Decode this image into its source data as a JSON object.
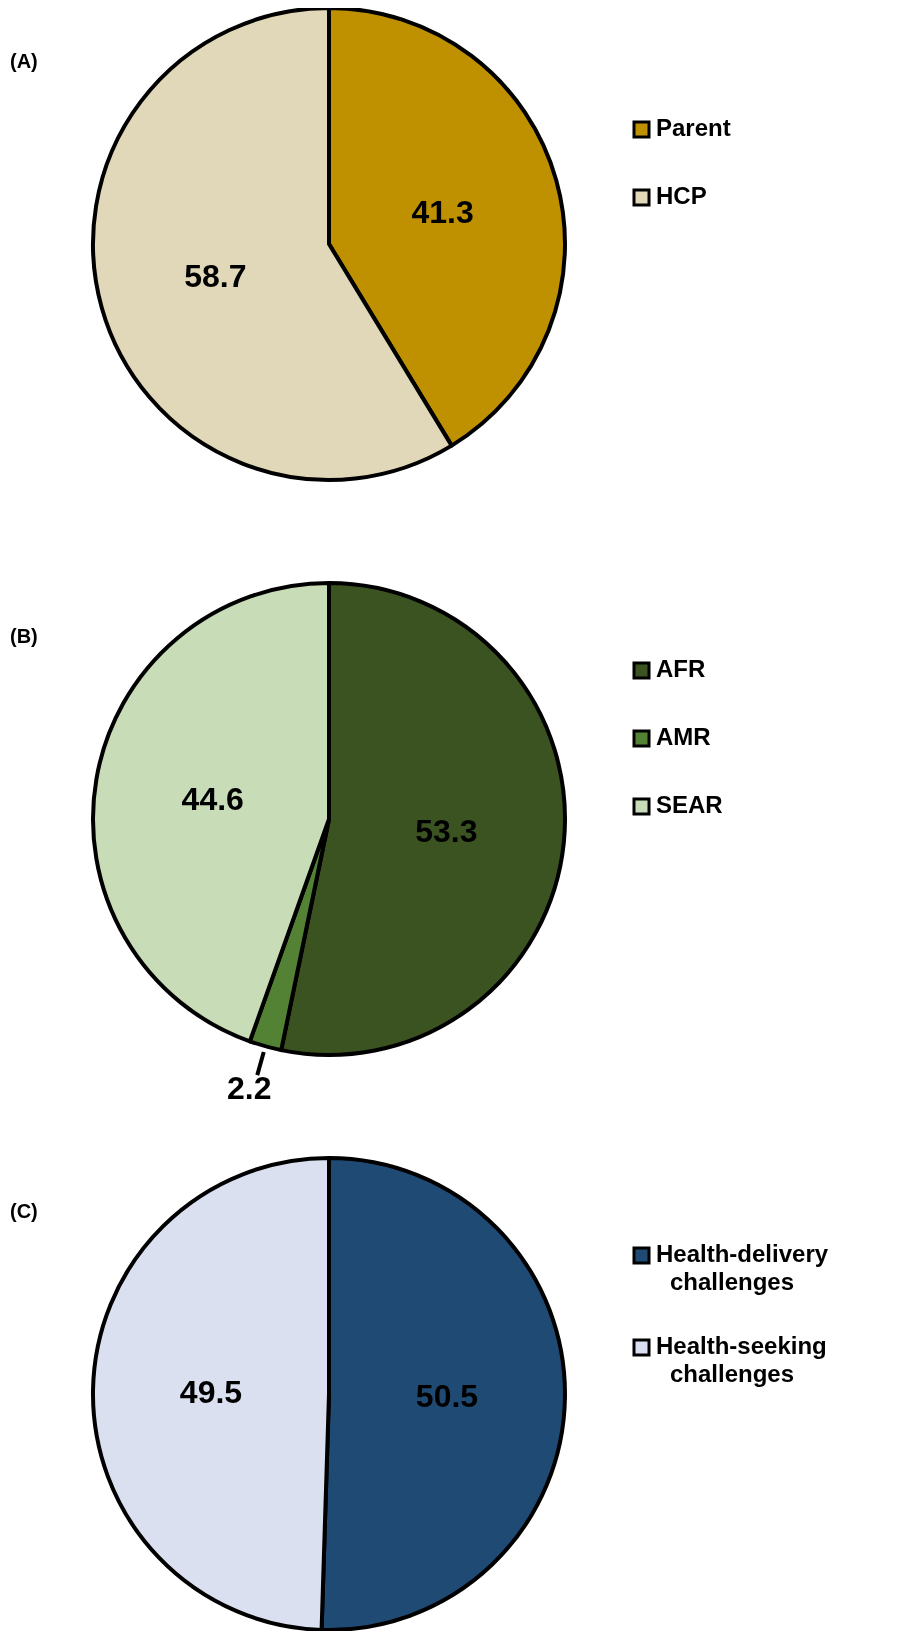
{
  "chart_data": [
    {
      "type": "pie",
      "title": "(A)",
      "categories": [
        "Parent",
        "HCP"
      ],
      "values": [
        41.3,
        58.7
      ],
      "colors": [
        "#bf9000",
        "#e0d8b8"
      ],
      "data_labels": true,
      "legend": "right"
    },
    {
      "type": "pie",
      "title": "(B)",
      "categories": [
        "AFR",
        "AMR",
        "SEAR"
      ],
      "values": [
        53.3,
        2.2,
        44.6
      ],
      "colors": [
        "#3b5320",
        "#548235",
        "#c8dcb8"
      ],
      "data_labels": true,
      "legend": "right"
    },
    {
      "type": "pie",
      "title": "(C)",
      "categories": [
        "Health-delivery challenges",
        "Health-seeking challenges"
      ],
      "values": [
        50.5,
        49.5
      ],
      "colors": [
        "#1f4a73",
        "#dae0f0"
      ],
      "data_labels": true,
      "legend": "right"
    }
  ]
}
